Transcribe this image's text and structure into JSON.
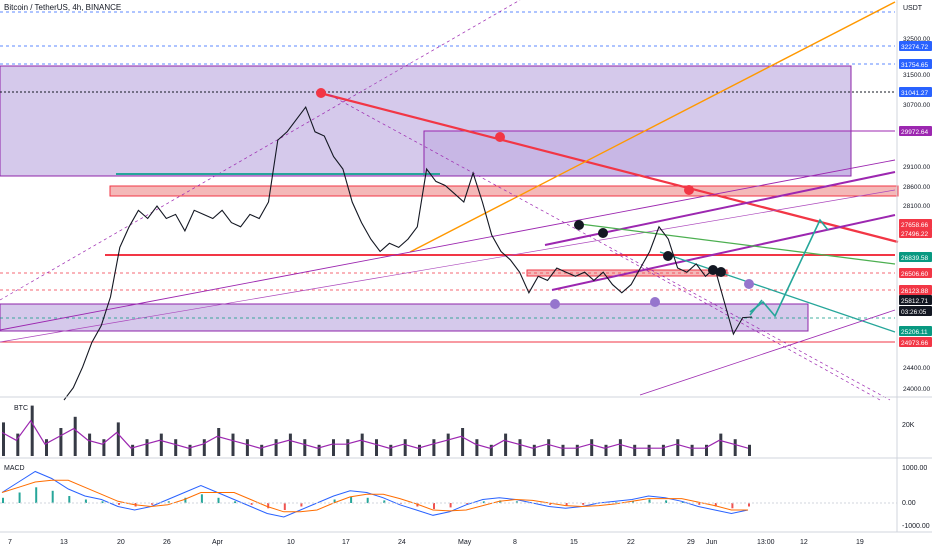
{
  "header": {
    "symbol": "Bitcoin / TetherUS, 4h, BINANCE",
    "currency": "USDT"
  },
  "volume_pane": {
    "label": "BTC",
    "scale_label": "20K"
  },
  "macd_pane": {
    "label": "MACD",
    "scale_labels": [
      "1000.00",
      "0.00",
      "-1000.00"
    ]
  },
  "x_axis": {
    "labels": [
      "7",
      "13",
      "20",
      "26",
      "Apr",
      "10",
      "17",
      "24",
      "May",
      "8",
      "15",
      "22",
      "29",
      "Jun",
      "13:00",
      "12",
      "19"
    ]
  },
  "price_axis": {
    "ticks": [
      "32500.00",
      "31500.00",
      "30700.00",
      "29100.00",
      "28600.00",
      "28100.00",
      "24400.00",
      "24000.00"
    ],
    "badges": [
      {
        "label": "32274.72",
        "color": "#2962ff"
      },
      {
        "label": "31754.65",
        "color": "#2962ff"
      },
      {
        "label": "31041.27",
        "color": "#2962ff"
      },
      {
        "label": "29972.64",
        "color": "#9c27b0"
      },
      {
        "label": "27658.66",
        "color": "#f23645"
      },
      {
        "label": "27496.22",
        "color": "#f23645"
      },
      {
        "label": "26839.58",
        "color": "#089981"
      },
      {
        "label": "26506.60",
        "color": "#f23645"
      },
      {
        "label": "26123.88",
        "color": "#f23645"
      },
      {
        "label": "25812.71",
        "color": "#131722"
      },
      {
        "label": "03:26:05",
        "color": "#131722"
      },
      {
        "label": "25206.11",
        "color": "#089981"
      },
      {
        "label": "24973.66",
        "color": "#f23645"
      }
    ]
  },
  "colors": {
    "zone_fill": "#b39ddb",
    "zone_border": "#8e24aa",
    "resistance": "#f23645",
    "candle": "#131722",
    "orange_line": "#ff9800",
    "teal_line": "#26a69a",
    "volume_bar": "#363a45",
    "volume_ma": "#9c27b0",
    "macd_line": "#2962ff",
    "signal_line": "#ff6d00"
  },
  "chart_data": {
    "type": "line",
    "xlabel": "",
    "ylabel": "",
    "ylim": [
      23900,
      33300
    ],
    "price_series": [
      [
        0,
        23800
      ],
      [
        2,
        24100
      ],
      [
        4,
        24600
      ],
      [
        6,
        25200
      ],
      [
        8,
        25600
      ],
      [
        10,
        26300
      ],
      [
        12,
        27500
      ],
      [
        14,
        28000
      ],
      [
        16,
        28400
      ],
      [
        18,
        28200
      ],
      [
        20,
        28500
      ],
      [
        22,
        28200
      ],
      [
        24,
        28300
      ],
      [
        26,
        27900
      ],
      [
        28,
        28400
      ],
      [
        30,
        28300
      ],
      [
        32,
        28200
      ],
      [
        34,
        28400
      ],
      [
        36,
        28100
      ],
      [
        38,
        28000
      ],
      [
        40,
        28300
      ],
      [
        42,
        28200
      ],
      [
        44,
        28600
      ],
      [
        46,
        30100
      ],
      [
        48,
        30300
      ],
      [
        50,
        30600
      ],
      [
        52,
        30900
      ],
      [
        54,
        30300
      ],
      [
        56,
        30200
      ],
      [
        58,
        29700
      ],
      [
        60,
        29400
      ],
      [
        62,
        28600
      ],
      [
        64,
        28100
      ],
      [
        66,
        27700
      ],
      [
        68,
        27400
      ],
      [
        70,
        27600
      ],
      [
        72,
        27500
      ],
      [
        74,
        27700
      ],
      [
        76,
        28000
      ],
      [
        78,
        29400
      ],
      [
        80,
        29100
      ],
      [
        82,
        29000
      ],
      [
        84,
        28800
      ],
      [
        86,
        28600
      ],
      [
        88,
        29300
      ],
      [
        90,
        28600
      ],
      [
        92,
        27800
      ],
      [
        94,
        27400
      ],
      [
        96,
        27200
      ],
      [
        98,
        26900
      ],
      [
        100,
        26400
      ],
      [
        102,
        26800
      ],
      [
        104,
        26700
      ],
      [
        106,
        27000
      ],
      [
        108,
        26900
      ],
      [
        110,
        26800
      ],
      [
        112,
        26900
      ],
      [
        114,
        26700
      ],
      [
        116,
        26900
      ],
      [
        118,
        26600
      ],
      [
        120,
        26400
      ],
      [
        122,
        26600
      ],
      [
        124,
        27000
      ],
      [
        126,
        27400
      ],
      [
        128,
        28000
      ],
      [
        130,
        27700
      ],
      [
        132,
        27000
      ],
      [
        134,
        26900
      ],
      [
        136,
        27100
      ],
      [
        138,
        26800
      ],
      [
        140,
        27000
      ],
      [
        142,
        26200
      ],
      [
        144,
        25400
      ],
      [
        146,
        25800
      ],
      [
        148,
        25812.71
      ]
    ],
    "volume_values": [
      0.6,
      0.4,
      0.9,
      0.3,
      0.5,
      0.7,
      0.4,
      0.3,
      0.6,
      0.2,
      0.3,
      0.4,
      0.3,
      0.2,
      0.3,
      0.5,
      0.4,
      0.3,
      0.2,
      0.3,
      0.4,
      0.3,
      0.2,
      0.3,
      0.3,
      0.4,
      0.3,
      0.2,
      0.3,
      0.2,
      0.3,
      0.4,
      0.5,
      0.3,
      0.2,
      0.4,
      0.3,
      0.2,
      0.3,
      0.2,
      0.2,
      0.3,
      0.2,
      0.3,
      0.2,
      0.2,
      0.2,
      0.3,
      0.2,
      0.2,
      0.4,
      0.3,
      0.2
    ],
    "macd_values": [
      300,
      600,
      900,
      700,
      400,
      200,
      100,
      -100,
      -200,
      -100,
      100,
      300,
      500,
      300,
      100,
      -100,
      -300,
      -400,
      -200,
      0,
      200,
      350,
      300,
      150,
      -50,
      -200,
      -350,
      -250,
      -50,
      100,
      150,
      100,
      0,
      -100,
      -150,
      -100,
      0,
      50,
      100,
      200,
      150,
      50,
      -100,
      -200,
      -300,
      -200
    ]
  }
}
